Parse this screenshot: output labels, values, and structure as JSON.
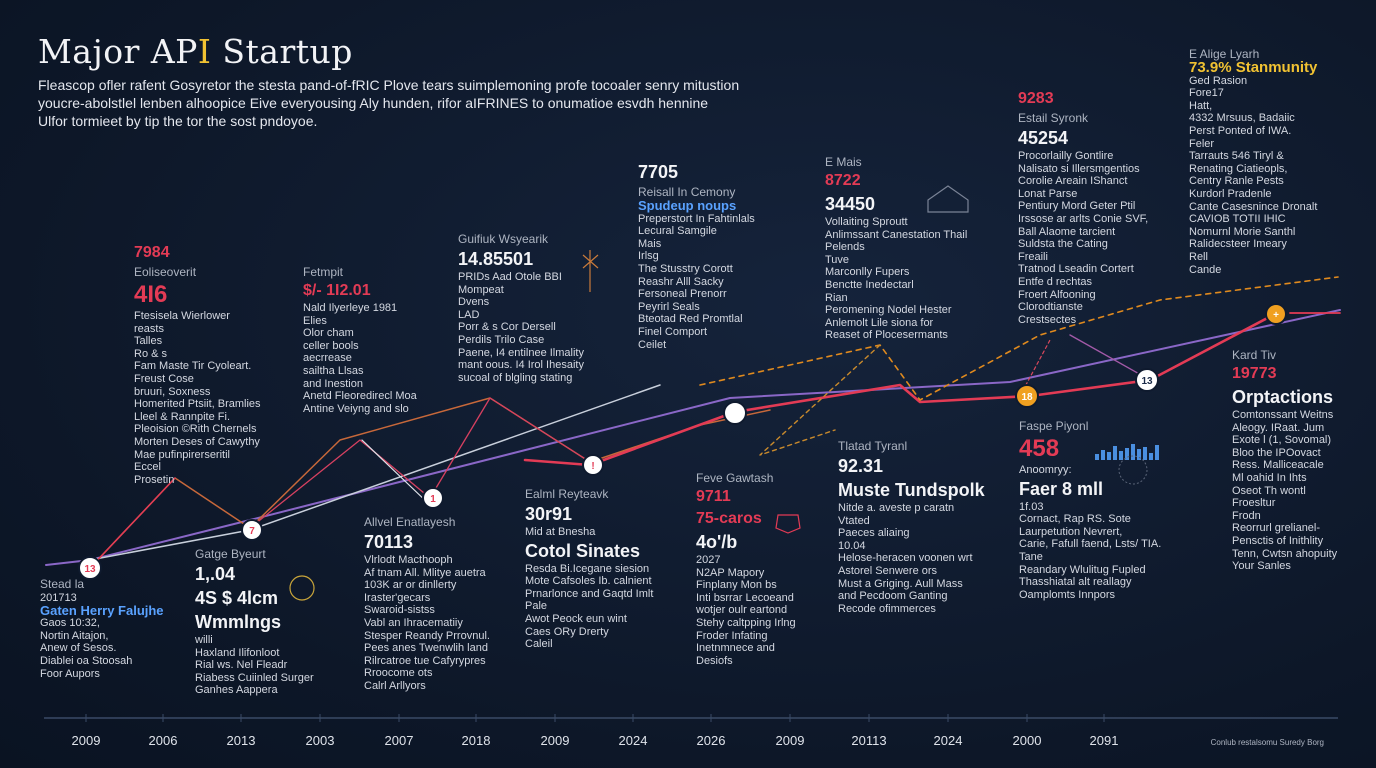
{
  "header": {
    "title_main": "Major AP",
    "title_accent": "I",
    "title_end": " Startup",
    "subtitle_lines": [
      "Fleascop ofler rafent Gosyretor the stesta pand-of-fRIC Plove tears suimplemoning profe tocoaler senry mitustion",
      "youcre-abolstlel lenben alhoopice Eive everyousing Aly hunden, rifor aIFRINES to onumatioe esvdh hennine",
      "Ulfor tormieet by tip the tor the sost pndoyoe."
    ]
  },
  "colors": {
    "background": "#0f1a2e",
    "line_red": "#e33b55",
    "line_purple": "#8a67c7",
    "line_orange": "#c7683a",
    "line_gold": "#e08a1e",
    "line_white": "#c8cfdb"
  },
  "chart_data": {
    "type": "line",
    "title": "Major API Startup",
    "categories": [
      "2009",
      "2006",
      "2013",
      "2003",
      "2007",
      "2018",
      "2009",
      "2024",
      "2026",
      "2009",
      "20113",
      "2024",
      "2000",
      "2091"
    ],
    "grid": false,
    "markers": [
      "13",
      "7",
      "1",
      "!",
      "",
      "18",
      "13",
      "+"
    ],
    "annotations": [
      {
        "lines": [
          "Stead la",
          "201713",
          "Gaten Herry Falujhe",
          "Gaos 10:32,",
          "Nortin Aitajon,",
          "Anew of Sesos.",
          "Diablei oa Stoosah",
          "Foor Aupors"
        ]
      },
      {
        "lines": [
          "7984",
          "Eoliseoverit",
          "4I6",
          "Ftesisela Wierlower",
          "reasts",
          "Talles",
          "Ro & s",
          "Fam Maste Tir Cyoleart.",
          "Freust Cose",
          "bruuri, Soxness",
          "Homerited Ptsiit, Bramlies",
          "Lleel & Rannpite Fi.",
          "Pleoision ©Rith Chernels",
          "Morten Deses of Cawythy",
          "Mae pufinpirerseritil",
          "Eccel",
          "Prosetin"
        ]
      },
      {
        "lines": [
          "Fetmpit",
          "$/- 1I2.01",
          "Nald Ilyerleye 1981",
          "Elies",
          "Olor cham",
          "celler bools",
          "aecrrease",
          "sailtha Llsas",
          "and Inestion",
          "Anetd Fleoredirecl Moa",
          "Antine Veiyng and slo"
        ]
      },
      {
        "lines": [
          "Gatge Byeurt",
          "1,.04",
          "4S $ 4lcm",
          "Wmmlngs",
          "willi",
          "Haxland Ilifonloot",
          "Rial ws. Nel Fleadr",
          "Riabess Cuiinled Surger",
          "Ganhes Aappera"
        ]
      },
      {
        "lines": [
          "Guifiuk Wsyearik",
          "14.85501",
          "PRIDs Aad Otole BBI",
          "Mompeat",
          "Dvens",
          "LAD",
          "Porr & s Cor Dersell",
          "Perdils Trilo Case",
          "Paene, I4 entilnee Ilmality",
          "mant oous. I4 Irol Ihesaity",
          "sucoal of blgling stating"
        ]
      },
      {
        "lines": [
          "Allvel Enatlayesh",
          "70113",
          "Vlrlodt Macthooph",
          "Af tnam All. Mlitye auetra",
          "103K ar or dinllerty",
          "Iraster'gecars",
          "Swaroid-sistss",
          "Vabl an Ihracematiiy",
          "Stesper Reandy Prrovnul.",
          "Pees anes Twenwlih land",
          "Rilrcatroe tue Cafyrypres",
          "Rroocome ots",
          "Calrl Arllyors"
        ]
      },
      {
        "lines": [
          "7705",
          "Reisall In Cemony",
          "Spudeup   noups",
          "Preperstort In Fahtinlals",
          "Lecural Samgile",
          "Mais",
          "Irlsg",
          "The Stusstry Corott",
          "Reashr Alll Sacky",
          "Fersoneal Prenorr",
          "Peyrirl Seals",
          "Bteotad Red Promtlal",
          "Finel Comport",
          "Ceilet"
        ]
      },
      {
        "lines": [
          "Ealml Reyteavk",
          "30r91",
          "Mid at Bnesha",
          "Cotol Sinates",
          "Resda Bi.Icegane siesion",
          "Mote Cafsoles Ib. calnient",
          "Prnarlonce and Gaqtd Imlt",
          "Pale",
          "Awot Peock eun wint",
          "Caes ORy Drerty",
          "Caleil"
        ]
      },
      {
        "lines": [
          "Feve Gawtash",
          "9711",
          "75-caros",
          "4o'/b",
          "2027",
          "N2AP Mapory",
          "Finplany Mon bs",
          "Inti bsrrar Lecoeand",
          "wotjer oulr eartond",
          "Stehy caltpping Irlng",
          "Froder Infating",
          "Inetnmnece and",
          "Desiofs"
        ]
      },
      {
        "lines": [
          "E Mais",
          "8722",
          "34450",
          "Vollaiting Sproutt",
          "Anlimssant Canestation Thail",
          "Pelends",
          "Tuve",
          "Marconlly Fupers",
          "Benctte Inedectarl",
          "Rian",
          "Peromening Nodel Hester",
          "Anlemolt Lile siona for",
          "Reaset of Plocesermants"
        ]
      },
      {
        "lines": [
          "Tlatad Tyranl",
          "92.31",
          "Muste Tundspolk",
          "Nitde a. aveste p caratn",
          "Vtated",
          "Paeces aliaing",
          "10.04",
          "Helose-heracen voonen wrt",
          "Astorel Senwere ors",
          "Must a Griging. Aull Mass",
          "and Pecdoom Ganting",
          "Recode ofimmerces"
        ]
      },
      {
        "lines": [
          "9283",
          "Estail Syronk",
          "45254",
          "Procorlailly Gontlire",
          "Nalisato si Illersmgentios",
          "Corolie Areain IShanct",
          "Lonat Parse",
          "Pentiury Mord Geter Ptil",
          "Irssose ar arlts Conie SVF,",
          "Ball Alaome tarcient",
          "Suldsta the Cating",
          "Freaili",
          "Tratnod Lseadin Cortert",
          "Entfe d rechtas",
          "Froert Alfooning",
          "Clorodtianste",
          "Crestsectes"
        ]
      },
      {
        "lines": [
          "Faspe Piyonl",
          "458",
          "Anoomryy:",
          "Faer 8 mll",
          "1f.03",
          "Cornact, Rap RS. Sote",
          "Laurpetution Nevrert,",
          "Carie, Fafull faend, Lsts/ TIA.",
          "Tane",
          "Reandary Wlulitug Fupled",
          "Thasshiatal alt reallagy",
          "Oamplomts Innpors"
        ]
      },
      {
        "lines": [
          "E Alige Lyarh",
          "73.9% Stanmunity",
          "Ged Rasion",
          "Fore17",
          "Hatt,",
          "4332 Mrsuus, Badaiic",
          "Perst Ponted of IWA.",
          "Feler",
          "Tarrauts 546 Tiryl &",
          "Renating Ciatieopls,",
          "Centry Ranle Pests",
          "Kurdorl Pradenle",
          "Cante Casesnince Dronalt",
          "CAVIOB TOTII IHIC",
          "Nomurnl Morie Santhl",
          "Ralidecsteer Imeary",
          "Rell",
          "Cande"
        ]
      },
      {
        "lines": [
          "Kard Tiv",
          "19773",
          "Orptactions",
          "Comtonssant Weitns",
          "Aleogy. IRaat. Jum",
          "Exote l (1, Sovomal)",
          "Bloo the IPOovact",
          "Ress. Malliceacale",
          "Ml oahid In Ihts",
          "Oseot Th wontl",
          "Froesltur",
          "Frodn",
          "Reorrurl grelianel-",
          "Pensctis of Inithlity",
          "Tenn, Cwtsn ahopuity",
          "Your Sanles"
        ]
      }
    ]
  },
  "footer": {
    "source": "Conlub restalsomu Suredy Borg"
  }
}
